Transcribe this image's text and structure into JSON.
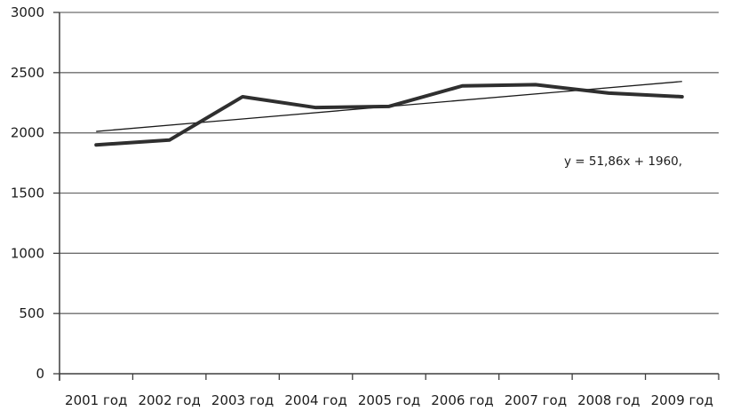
{
  "chart_data": {
    "type": "line",
    "title": "",
    "categories": [
      "2001 год",
      "2002 год",
      "2003 год",
      "2004 год",
      "2005 год",
      "2006 год",
      "2007 год",
      "2008 год",
      "2009 год"
    ],
    "series": [
      {
        "values": [
          1900,
          1940,
          2300,
          2210,
          2220,
          2390,
          2400,
          2330,
          2300
        ]
      }
    ],
    "trendline": {
      "label": "y = 51,86x + 1960,",
      "slope": 51.86,
      "intercept": 1960
    },
    "ylim": [
      0,
      3000
    ],
    "ytick_step": 500,
    "xlabel": "",
    "ylabel": "",
    "grid": "horizontal",
    "legend": "none"
  },
  "style": {
    "background": "#ffffff",
    "grid_color": "#6e6e6e",
    "axis_color": "#3f3f3f",
    "text_color": "#1c1c1c",
    "data_line_color": "#2f2f2f",
    "trend_line_color": "#1a1a1a"
  }
}
